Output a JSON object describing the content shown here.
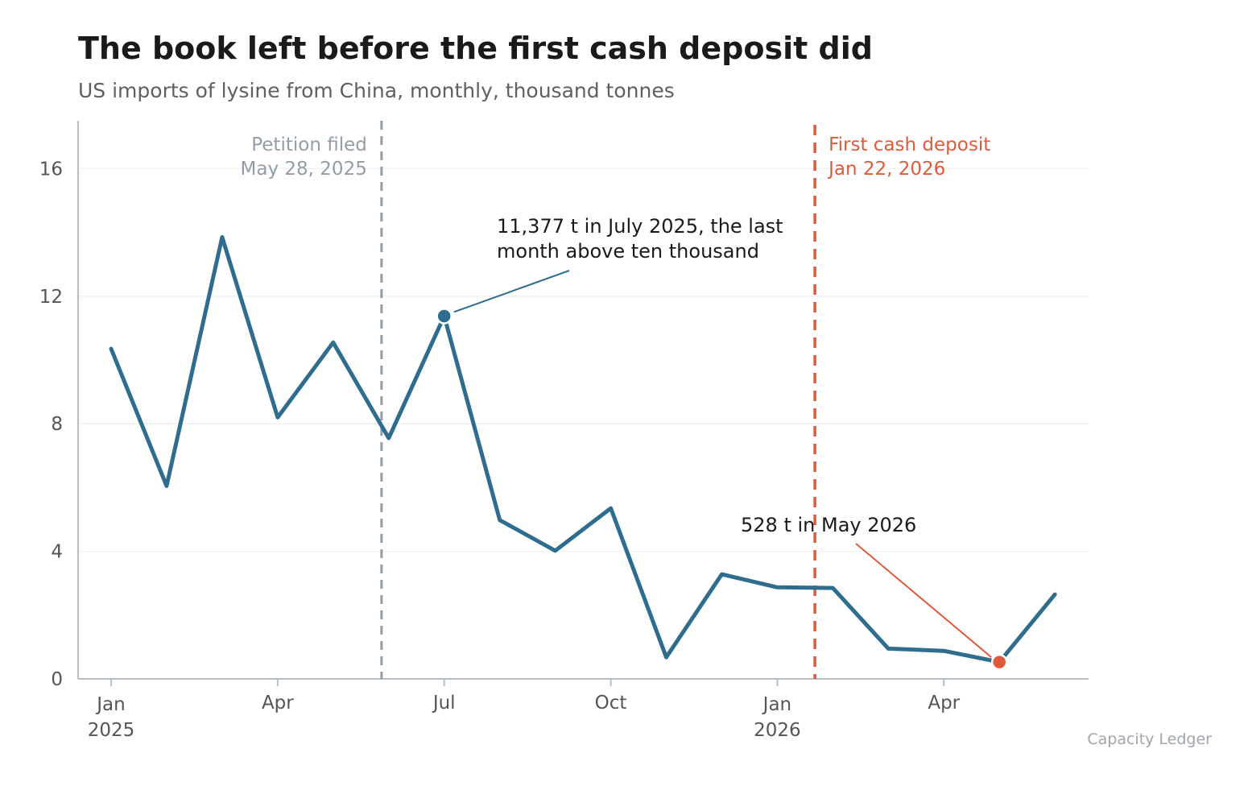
{
  "title": "The book left before the first cash deposit did",
  "subtitle": "US imports of lysine from China, monthly, thousand tonnes",
  "source": "Capacity Ledger",
  "colors": {
    "line": "#2e6d8e",
    "accent": "#e05a3a",
    "petition": "#939da7",
    "axis": "#b7bec6",
    "grid": "#f1f1f1"
  },
  "chart_data": {
    "type": "line",
    "x": [
      "2025-01",
      "2025-02",
      "2025-03",
      "2025-04",
      "2025-05",
      "2025-06",
      "2025-07",
      "2025-08",
      "2025-09",
      "2025-10",
      "2025-11",
      "2025-12",
      "2026-01",
      "2026-02",
      "2026-03",
      "2026-04",
      "2026-05",
      "2026-06"
    ],
    "values": [
      10.35,
      6.05,
      13.85,
      8.2,
      10.55,
      7.55,
      11.377,
      4.98,
      4.02,
      5.35,
      0.68,
      3.28,
      2.87,
      2.85,
      0.95,
      0.88,
      0.528,
      2.65
    ],
    "ylim": [
      0,
      17.5
    ],
    "yticks": [
      "0",
      "4",
      "8",
      "12",
      "16"
    ],
    "xticks": [
      {
        "x": "2025-01",
        "label": "Jan",
        "year": "2025"
      },
      {
        "x": "2025-04",
        "label": "Apr",
        "year": ""
      },
      {
        "x": "2025-07",
        "label": "Jul",
        "year": ""
      },
      {
        "x": "2025-10",
        "label": "Oct",
        "year": ""
      },
      {
        "x": "2026-01",
        "label": "Jan",
        "year": "2026"
      },
      {
        "x": "2026-04",
        "label": "Apr",
        "year": ""
      }
    ],
    "events": [
      {
        "date": "2025-05-28",
        "line1": "Petition filed",
        "line2": "May 28, 2025",
        "style": "petition"
      },
      {
        "date": "2026-01-22",
        "line1": "First cash deposit",
        "line2": "Jan 22, 2026",
        "style": "accent"
      }
    ],
    "annotations": [
      {
        "x": "2025-07",
        "line1": "11,377 t in July 2025, the last",
        "line2": "month above ten thousand",
        "style": "line"
      },
      {
        "x": "2026-05",
        "line1": "528 t in May 2026",
        "line2": "",
        "style": "accent"
      }
    ],
    "grid": true
  }
}
